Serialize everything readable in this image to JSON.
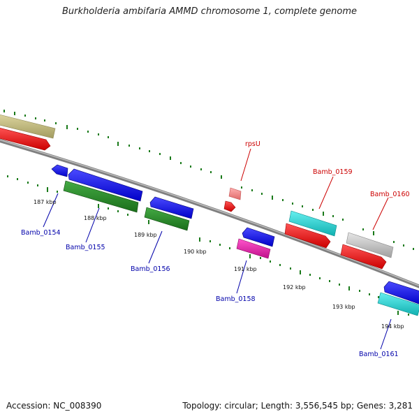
{
  "title": "Burkholderia ambifaria AMMD chromosome 1, complete genome",
  "footer": {
    "accession": "Accession: NC_008390",
    "summary": "Topology: circular; Length: 3,556,545 bp; Genes: 3,281"
  },
  "ticks": [
    "187 kbp",
    "188 kbp",
    "189 kbp",
    "190 kbp",
    "191 kbp",
    "192 kbp",
    "193 kbp",
    "194 kbp"
  ],
  "genes": [
    {
      "label": "Bamb_0154",
      "color": "#0000aa"
    },
    {
      "label": "Bamb_0155",
      "color": "#0000aa"
    },
    {
      "label": "Bamb_0156",
      "color": "#0000aa"
    },
    {
      "label": "Bamb_0158",
      "color": "#0000aa"
    },
    {
      "label": "Bamb_0161",
      "color": "#0000aa"
    },
    {
      "label": "rpsU",
      "color": "#cc0000"
    },
    {
      "label": "Bamb_0159",
      "color": "#cc0000"
    },
    {
      "label": "Bamb_0160",
      "color": "#cc0000"
    }
  ]
}
